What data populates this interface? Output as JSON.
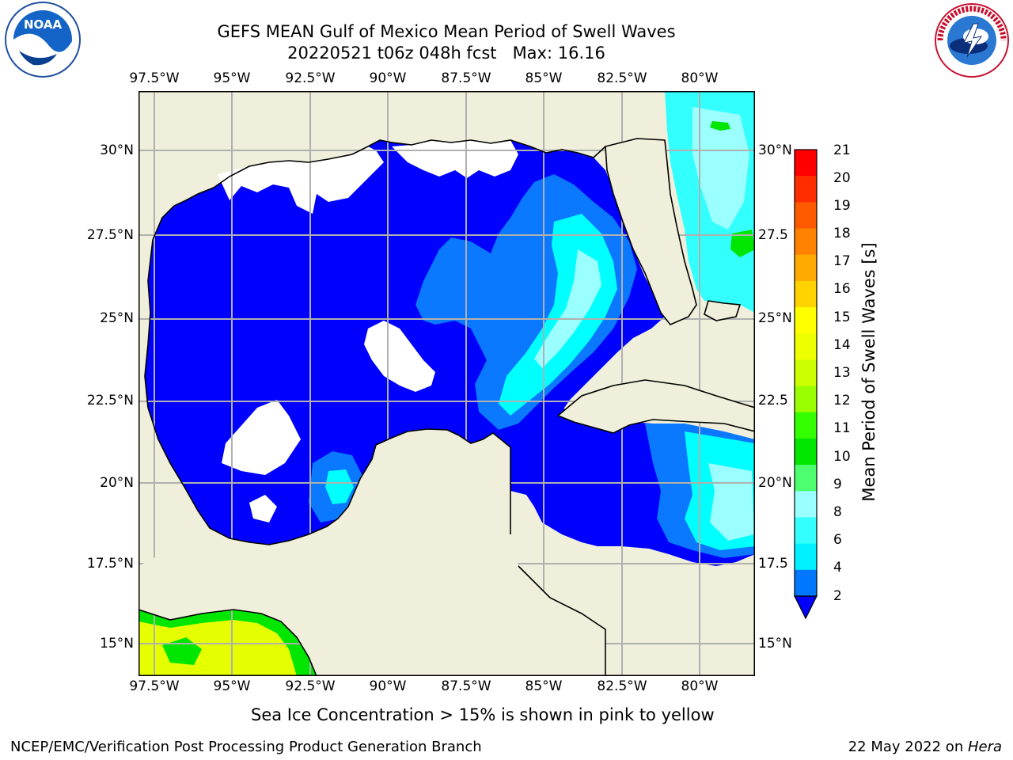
{
  "header": {
    "title_line1": "GEFS MEAN Gulf of Mexico Mean Period of Swell Waves",
    "title_line2": "20220521 t06z 048h fcst   Max: 16.16"
  },
  "logos": {
    "left": "noaa-logo",
    "right": "national-weather-service-logo"
  },
  "map": {
    "lon_labels": [
      "97.5°W",
      "95°W",
      "92.5°W",
      "90°W",
      "87.5°W",
      "85°W",
      "82.5°W",
      "80°W"
    ],
    "lat_labels_left": [
      "30°N",
      "27.5°N",
      "25°N",
      "22.5°N",
      "20°N",
      "17.5°N",
      "15°N"
    ],
    "lat_labels_right": [
      "30°N",
      "27.5",
      "25°N",
      "22.5",
      "20°N",
      "17.5",
      "15°N"
    ],
    "colors": {
      "land": "#efefdb",
      "ocean_low": "#0000ff",
      "ocean_mid": "#0a78ff",
      "ocean_cyan": "#00ffff",
      "ocean_lightcyan": "#33ffff",
      "ocean_pale": "#9bffff",
      "green": "#00e600",
      "yellow": "#e6ff00"
    }
  },
  "colorbar": {
    "label": "Mean Period of Swell Waves [s]",
    "ticks": [
      "21",
      "20",
      "19",
      "18",
      "17",
      "16",
      "15",
      "14",
      "13",
      "12",
      "11",
      "10",
      "9",
      "8",
      "6",
      "4",
      "2"
    ],
    "colors_top_to_bottom": [
      "#ff0000",
      "#ff2d00",
      "#ff5a00",
      "#ff8200",
      "#ffaa00",
      "#ffd200",
      "#ffff00",
      "#eeff00",
      "#ccff00",
      "#99ff00",
      "#33ff00",
      "#00e600",
      "#4dff6e",
      "#9affff",
      "#33ffff",
      "#00f0ff",
      "#0077ff"
    ],
    "extend_color": "#0000ff"
  },
  "caption": "Sea Ice Concentration > 15% is shown in pink to yellow",
  "footer": {
    "left": "NCEP/EMC/Verification Post Processing Product Generation Branch",
    "right_date": "22 May 2022 on ",
    "right_host": "Hera"
  }
}
